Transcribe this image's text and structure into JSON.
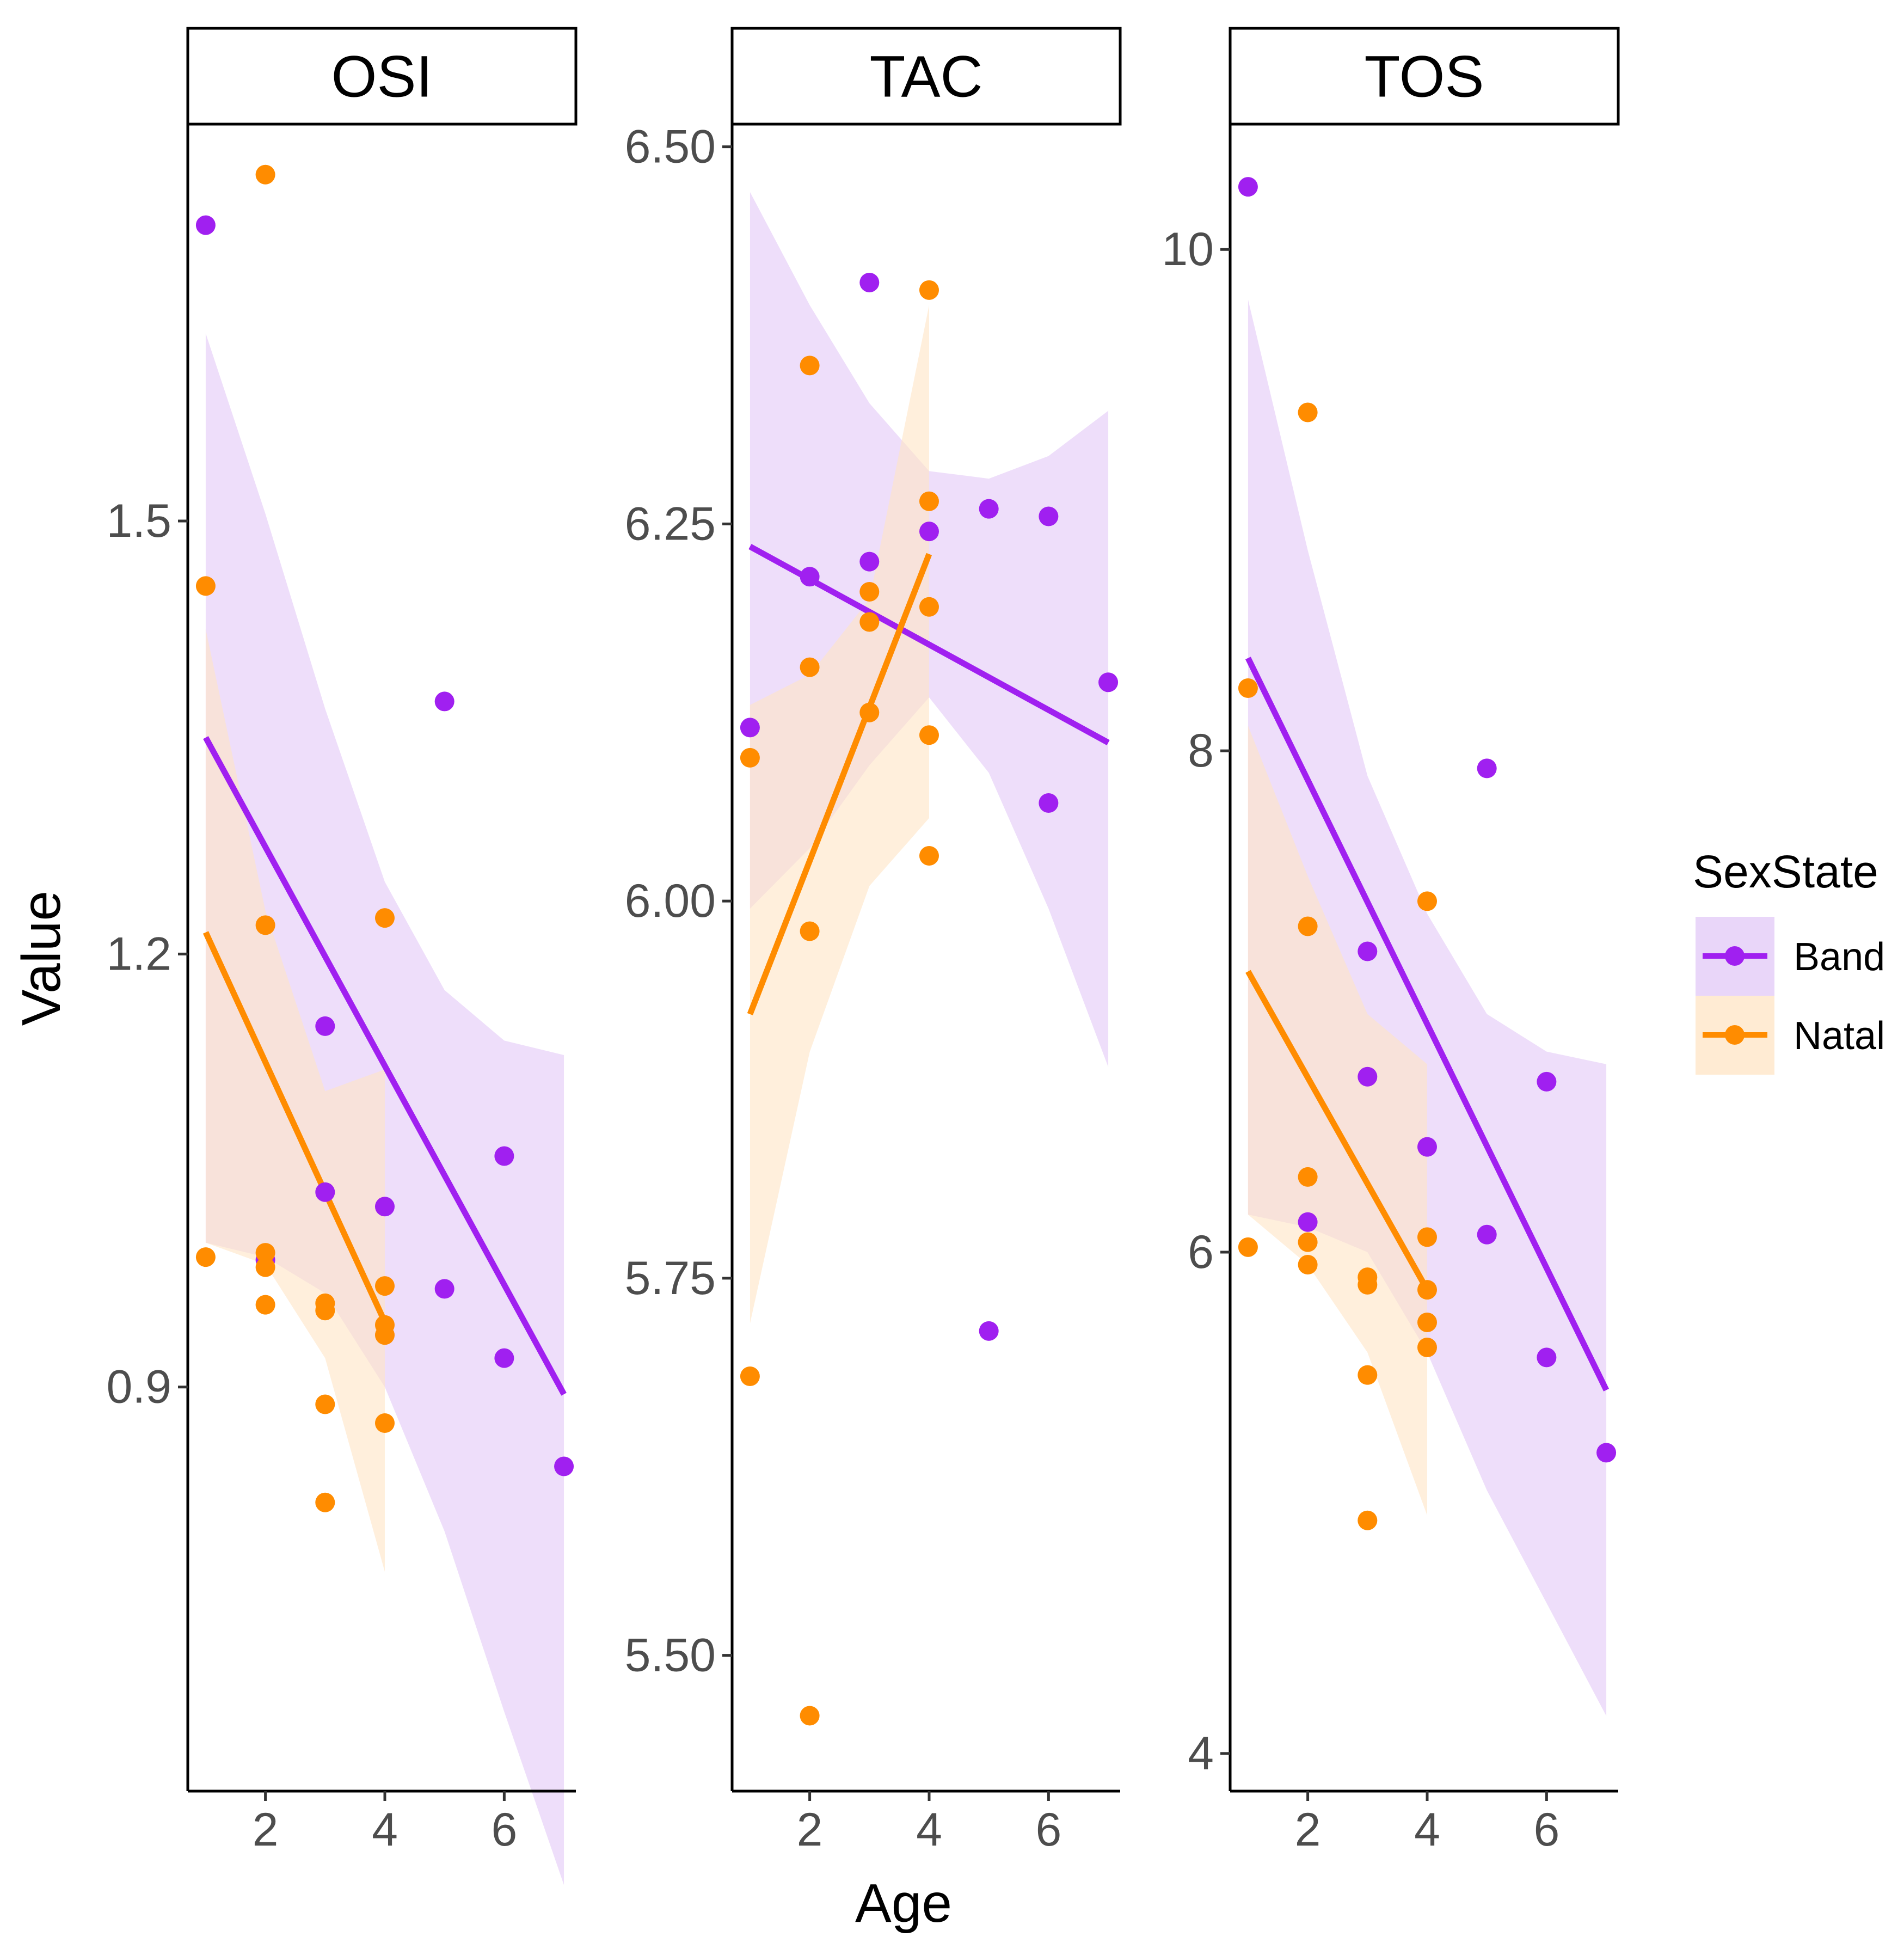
{
  "chart_data": {
    "type": "scatter",
    "xlabel": "Age",
    "ylabel": "Value",
    "xlim": [
      0.7,
      7.2
    ],
    "x_ticks": [
      2,
      4,
      6
    ],
    "legend": {
      "title": "SexState",
      "position": "right",
      "entries": [
        {
          "name": "Band",
          "color": "#A020F0",
          "fill": "#E2C8F7"
        },
        {
          "name": "Natal",
          "color": "#FF8C00",
          "fill": "#FFE4C4"
        }
      ]
    },
    "panels": [
      {
        "strip": "OSI",
        "ylim": [
          0.62,
          1.775
        ],
        "y_ticks": [
          0.9,
          1.2,
          1.5
        ],
        "y_tick_labels": [
          "0.9",
          "1.2",
          "1.5"
        ],
        "series": [
          {
            "name": "Band",
            "points": [
              [
                1,
                1.705
              ],
              [
                2,
                0.988
              ],
              [
                3,
                1.15
              ],
              [
                3,
                1.035
              ],
              [
                4,
                1.025
              ],
              [
                5,
                0.968
              ],
              [
                5,
                1.375
              ],
              [
                6,
                1.06
              ],
              [
                6,
                0.92
              ],
              [
                7,
                0.845
              ]
            ],
            "fit": {
              "x": [
                1,
                7
              ],
              "y": [
                1.35,
                0.895
              ]
            },
            "band": {
              "x": [
                1,
                2,
                3,
                4,
                5,
                6,
                7
              ],
              "lo": [
                1.0,
                0.99,
                0.965,
                0.9,
                0.8,
                0.675,
                0.555
              ],
              "hi": [
                1.63,
                1.505,
                1.37,
                1.25,
                1.175,
                1.14,
                1.13
              ]
            }
          },
          {
            "name": "Natal",
            "points": [
              [
                1,
                1.455
              ],
              [
                1,
                0.99
              ],
              [
                2,
                1.74
              ],
              [
                2,
                1.22
              ],
              [
                2,
                0.993
              ],
              [
                2,
                0.983
              ],
              [
                2,
                0.957
              ],
              [
                3,
                0.958
              ],
              [
                3,
                0.953
              ],
              [
                3,
                0.888
              ],
              [
                3,
                0.82
              ],
              [
                4,
                1.225
              ],
              [
                4,
                0.97
              ],
              [
                4,
                0.943
              ],
              [
                4,
                0.936
              ],
              [
                4,
                0.875
              ]
            ],
            "fit": {
              "x": [
                1,
                4
              ],
              "y": [
                1.215,
                0.945
              ]
            },
            "band": {
              "x": [
                1,
                2,
                3,
                4
              ],
              "lo": [
                1.0,
                0.985,
                0.92,
                0.772
              ],
              "hi": [
                1.425,
                1.23,
                1.105,
                1.12
              ]
            }
          }
        ]
      },
      {
        "strip": "TAC",
        "ylim": [
          5.41,
          6.515
        ],
        "y_ticks": [
          5.5,
          5.75,
          6.0,
          6.25,
          6.5
        ],
        "y_tick_labels": [
          "5.50",
          "5.75",
          "6.00",
          "6.25",
          "6.50"
        ],
        "series": [
          {
            "name": "Band",
            "points": [
              [
                1,
                6.115
              ],
              [
                2,
                6.215
              ],
              [
                3,
                6.41
              ],
              [
                3,
                6.225
              ],
              [
                4,
                6.245
              ],
              [
                5,
                6.26
              ],
              [
                5,
                5.715
              ],
              [
                6,
                6.255
              ],
              [
                6,
                6.065
              ],
              [
                7,
                6.145
              ]
            ],
            "fit": {
              "x": [
                1,
                7
              ],
              "y": [
                6.235,
                6.105
              ]
            },
            "band": {
              "x": [
                1,
                2,
                3,
                4,
                5,
                6,
                7
              ],
              "lo": [
                5.995,
                6.035,
                6.09,
                6.135,
                6.085,
                5.995,
                5.89
              ],
              "hi": [
                6.47,
                6.395,
                6.33,
                6.285,
                6.28,
                6.295,
                6.325
              ]
            }
          },
          {
            "name": "Natal",
            "points": [
              [
                1,
                6.095
              ],
              [
                1,
                5.685
              ],
              [
                2,
                6.355
              ],
              [
                2,
                6.155
              ],
              [
                2,
                5.98
              ],
              [
                2,
                5.46
              ],
              [
                3,
                6.205
              ],
              [
                3,
                6.185
              ],
              [
                3,
                6.125
              ],
              [
                4,
                6.405
              ],
              [
                4,
                6.265
              ],
              [
                4,
                6.195
              ],
              [
                4,
                6.11
              ],
              [
                4,
                6.03
              ]
            ],
            "fit": {
              "x": [
                1,
                4
              ],
              "y": [
                5.925,
                6.23
              ]
            },
            "band": {
              "x": [
                1,
                2,
                3,
                4
              ],
              "lo": [
                5.72,
                5.9,
                6.01,
                6.055
              ],
              "hi": [
                6.13,
                6.15,
                6.2,
                6.395
              ]
            }
          }
        ]
      },
      {
        "strip": "TOS",
        "ylim": [
          3.85,
          10.5
        ],
        "y_ticks": [
          4,
          6,
          8,
          10
        ],
        "y_tick_labels": [
          "4",
          "6",
          "8",
          "10"
        ],
        "series": [
          {
            "name": "Band",
            "points": [
              [
                1,
                10.25
              ],
              [
                2,
                6.12
              ],
              [
                3,
                7.2
              ],
              [
                3,
                6.7
              ],
              [
                4,
                6.42
              ],
              [
                5,
                6.07
              ],
              [
                5,
                7.93
              ],
              [
                6,
                6.68
              ],
              [
                6,
                5.58
              ],
              [
                7,
                5.2
              ]
            ],
            "fit": {
              "x": [
                1,
                7
              ],
              "y": [
                8.37,
                5.45
              ]
            },
            "band": {
              "x": [
                1,
                2,
                3,
                4,
                5,
                6,
                7
              ],
              "lo": [
                6.15,
                6.1,
                6.0,
                5.6,
                5.05,
                4.6,
                4.15
              ],
              "hi": [
                9.8,
                8.8,
                7.9,
                7.35,
                6.95,
                6.8,
                6.75
              ]
            }
          },
          {
            "name": "Natal",
            "points": [
              [
                1,
                8.25
              ],
              [
                1,
                6.02
              ],
              [
                2,
                9.35
              ],
              [
                2,
                7.3
              ],
              [
                2,
                6.3
              ],
              [
                2,
                6.04
              ],
              [
                2,
                5.95
              ],
              [
                3,
                5.9
              ],
              [
                3,
                5.87
              ],
              [
                3,
                5.51
              ],
              [
                3,
                4.93
              ],
              [
                4,
                7.4
              ],
              [
                4,
                6.06
              ],
              [
                4,
                5.85
              ],
              [
                4,
                5.72
              ],
              [
                4,
                5.62
              ]
            ],
            "fit": {
              "x": [
                1,
                4
              ],
              "y": [
                7.12,
                5.85
              ]
            },
            "band": {
              "x": [
                1,
                2,
                3,
                4
              ],
              "lo": [
                6.15,
                5.95,
                5.6,
                4.95
              ],
              "hi": [
                8.1,
                7.5,
                6.95,
                6.75
              ]
            }
          }
        ]
      }
    ]
  }
}
